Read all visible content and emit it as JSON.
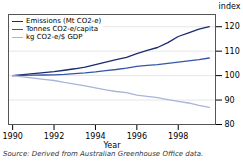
{
  "chart_data": {
    "type": "line",
    "xlabel": "Year",
    "ylabel": "index",
    "annotations": [
      "Source: Derived from Australian Greenhouse Office data."
    ],
    "x": [
      1990,
      1990.5,
      1991,
      1991.5,
      1992,
      1992.5,
      1993,
      1993.5,
      1994,
      1994.5,
      1995,
      1995.5,
      1996,
      1996.5,
      1997,
      1997.5,
      1998,
      1998.5,
      1999,
      1999.5
    ],
    "series": [
      {
        "name": "Emissions (Mt CO2-e)",
        "color": "#1a2b6b",
        "values": [
          100.0,
          100.4,
          100.8,
          101.2,
          101.6,
          102.2,
          102.8,
          103.5,
          104.5,
          105.5,
          106.5,
          107.5,
          109.0,
          110.3,
          111.5,
          113.5,
          116.0,
          117.5,
          119.0,
          120.0
        ]
      },
      {
        "name": "Tonnes CO2-e/capita",
        "color": "#3355aa",
        "values": [
          100.0,
          100.1,
          100.2,
          100.25,
          100.3,
          100.5,
          100.8,
          101.1,
          101.5,
          102.0,
          102.5,
          103.1,
          103.8,
          104.2,
          104.5,
          105.0,
          105.5,
          106.0,
          106.5,
          107.2
        ]
      },
      {
        "name": "kg CO2-e/$ GDP",
        "color": "#aab4d8",
        "values": [
          100.0,
          99.5,
          99.0,
          98.5,
          98.0,
          97.2,
          96.5,
          95.8,
          95.0,
          94.2,
          93.5,
          93.0,
          92.0,
          91.5,
          91.0,
          90.2,
          89.5,
          88.8,
          87.8,
          87.0
        ]
      }
    ],
    "xlim": [
      1989.8,
      1999.8
    ],
    "ylim": [
      80,
      125
    ],
    "xticks": [
      1990,
      1992,
      1994,
      1996,
      1998
    ],
    "yticks": [
      80,
      90,
      100,
      110,
      120
    ],
    "grid": true,
    "legend": "upper left"
  }
}
